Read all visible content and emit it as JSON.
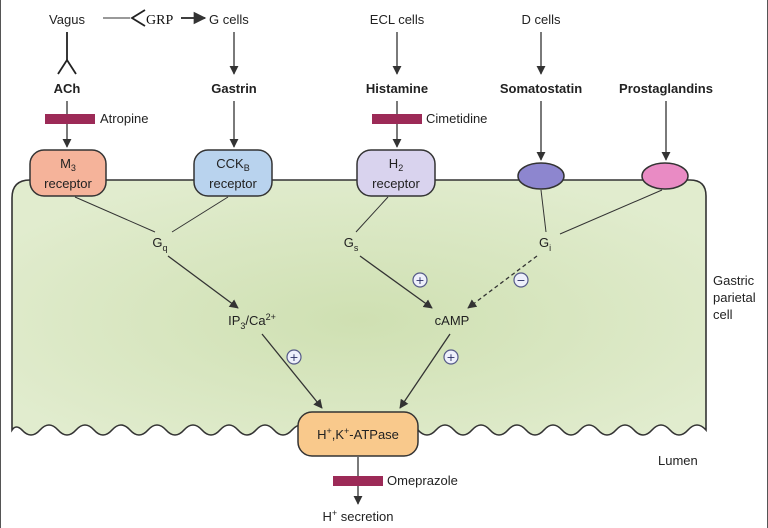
{
  "sources": {
    "vagus": "Vagus",
    "grp": "GRP",
    "g_cells": "G cells",
    "ecl_cells": "ECL cells",
    "d_cells": "D cells"
  },
  "ligands": {
    "ach": "ACh",
    "gastrin": "Gastrin",
    "histamine": "Histamine",
    "somatostatin": "Somatostatin",
    "prostaglandins": "Prostaglandins"
  },
  "drugs": {
    "atropine": "Atropine",
    "cimetidine": "Cimetidine",
    "omeprazole": "Omeprazole"
  },
  "receptors": {
    "m3": {
      "main": "M",
      "sub": "3",
      "line2": "receptor"
    },
    "cckb": {
      "main": "CCK",
      "sub": "B",
      "line2": "receptor"
    },
    "h2": {
      "main": "H",
      "sub": "2",
      "line2": "receptor"
    }
  },
  "g_proteins": {
    "gq": {
      "main": "G",
      "sub": "q"
    },
    "gs": {
      "main": "G",
      "sub": "s"
    },
    "gi": {
      "main": "G",
      "sub": "i"
    }
  },
  "messengers": {
    "ip3": {
      "a": "IP",
      "a_sub": "3",
      "b": "/Ca",
      "b_sup": "2+"
    },
    "camp": "cAMP"
  },
  "pump": {
    "h": "H",
    "h_sup": "+",
    "k": ",K",
    "k_sup": "+",
    "rest": "-ATPase"
  },
  "output": {
    "h": "H",
    "h_sup": "+",
    "rest": " secretion"
  },
  "cell": {
    "line1": "Gastric",
    "line2": "parietal",
    "line3": "cell",
    "lumen": "Lumen"
  },
  "signs": {
    "plus": "+",
    "minus": "−"
  },
  "colors": {
    "cell_fill": "#dbe8c6",
    "cell_inner": "#cfe0b4",
    "m3": "#f5b39a",
    "cckb": "#b9d3ee",
    "h2": "#d9d3ee",
    "somatostatin_receptor": "#8d86cf",
    "prostaglandin_receptor": "#e98bc4",
    "pump": "#f9c98c",
    "blocker": "#9c2a57"
  }
}
